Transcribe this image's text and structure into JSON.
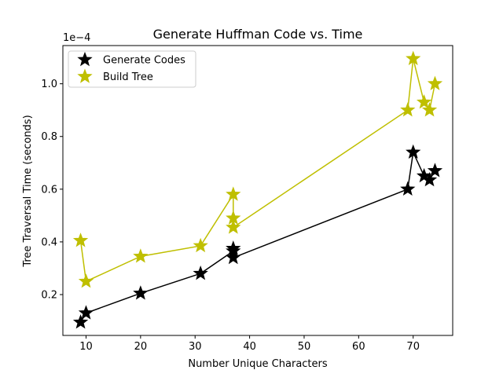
{
  "chart_data": {
    "type": "line",
    "title": "Generate Huffman Code vs. Time",
    "xlabel": "Number Unique Characters",
    "ylabel": "Tree Traversal Time (seconds)",
    "y_offset_text": "1e−4",
    "y_scale_factor": 0.0001,
    "xlim": [
      5.75,
      77.25
    ],
    "ylim": [
      0.045,
      1.145
    ],
    "xticks": [
      10,
      20,
      30,
      40,
      50,
      60,
      70
    ],
    "yticks": [
      0.2,
      0.4,
      0.6,
      0.8,
      1.0
    ],
    "ytick_labels": [
      "0.2",
      "0.4",
      "0.6",
      "0.8",
      "1.0"
    ],
    "grid": false,
    "legend_position": "top-left",
    "series": [
      {
        "name": "Generate Codes",
        "color": "#000000",
        "marker": "star",
        "x": [
          9,
          10,
          20,
          31,
          37,
          37,
          37,
          69,
          70,
          72,
          73,
          74
        ],
        "y": [
          0.095,
          0.13,
          0.205,
          0.28,
          0.365,
          0.375,
          0.34,
          0.6,
          0.74,
          0.65,
          0.635,
          0.67
        ]
      },
      {
        "name": "Build Tree",
        "color": "#bfbf00",
        "marker": "star",
        "x": [
          9,
          10,
          20,
          31,
          37,
          37,
          37,
          69,
          70,
          72,
          73,
          74
        ],
        "y": [
          0.405,
          0.25,
          0.345,
          0.385,
          0.58,
          0.49,
          0.455,
          0.9,
          1.095,
          0.93,
          0.9,
          1.0
        ]
      }
    ]
  }
}
